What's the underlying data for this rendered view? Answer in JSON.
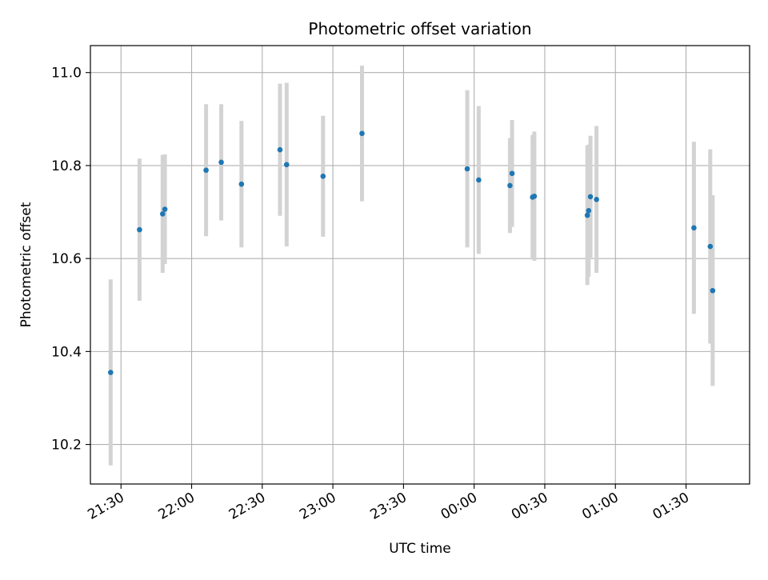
{
  "chart_data": {
    "type": "scatter",
    "title": "Photometric offset variation",
    "xlabel": "UTC time",
    "ylabel": "Photometric offset",
    "grid": true,
    "x_unit": "minutes",
    "x_range": [
      "21:17",
      "01:57"
    ],
    "ylim": [
      10.115,
      11.058
    ],
    "x_ticks": [
      "21:30",
      "22:00",
      "22:30",
      "23:00",
      "23:30",
      "00:00",
      "00:30",
      "01:00",
      "01:30"
    ],
    "y_ticks": [
      "10.2",
      "10.4",
      "10.6",
      "10.8",
      "11.0"
    ],
    "colors": {
      "point": "#1f77b4",
      "errorbar": "#d3d3d3",
      "grid": "#b0b0b0"
    },
    "series": [
      {
        "points": [
          {
            "t": "21:25:36",
            "y": 10.355,
            "err": 0.2
          },
          {
            "t": "21:37:52",
            "y": 10.662,
            "err": 0.153
          },
          {
            "t": "21:47:41",
            "y": 10.696,
            "err": 0.127
          },
          {
            "t": "21:48:38",
            "y": 10.706,
            "err": 0.118
          },
          {
            "t": "22:06:08",
            "y": 10.79,
            "err": 0.142
          },
          {
            "t": "22:12:35",
            "y": 10.807,
            "err": 0.125
          },
          {
            "t": "22:21:10",
            "y": 10.76,
            "err": 0.136
          },
          {
            "t": "22:37:32",
            "y": 10.834,
            "err": 0.142
          },
          {
            "t": "22:40:21",
            "y": 10.802,
            "err": 0.176
          },
          {
            "t": "22:55:49",
            "y": 10.777,
            "err": 0.13
          },
          {
            "t": "23:12:22",
            "y": 10.869,
            "err": 0.146
          },
          {
            "t": "23:57:04",
            "y": 10.793,
            "err": 0.169
          },
          {
            "t": "00:01:56",
            "y": 10.769,
            "err": 0.159
          },
          {
            "t": "00:15:12",
            "y": 10.757,
            "err": 0.102
          },
          {
            "t": "00:16:06",
            "y": 10.783,
            "err": 0.115
          },
          {
            "t": "00:24:49",
            "y": 10.732,
            "err": 0.134
          },
          {
            "t": "00:25:34",
            "y": 10.734,
            "err": 0.139
          },
          {
            "t": "00:48:05",
            "y": 10.693,
            "err": 0.15
          },
          {
            "t": "00:48:38",
            "y": 10.703,
            "err": 0.142
          },
          {
            "t": "00:49:24",
            "y": 10.733,
            "err": 0.131
          },
          {
            "t": "00:51:58",
            "y": 10.727,
            "err": 0.158
          },
          {
            "t": "01:33:21",
            "y": 10.666,
            "err": 0.185
          },
          {
            "t": "01:40:17",
            "y": 10.626,
            "err": 0.209
          },
          {
            "t": "01:41:19",
            "y": 10.531,
            "err": 0.205
          }
        ]
      }
    ]
  }
}
